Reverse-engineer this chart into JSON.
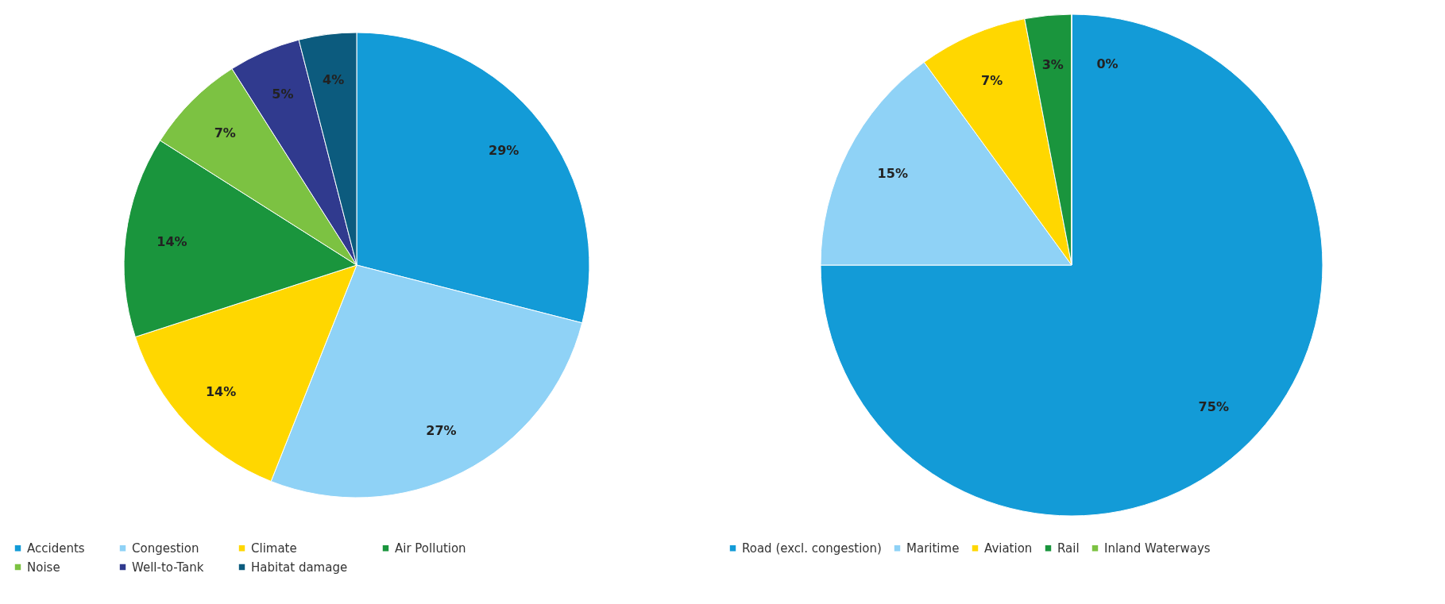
{
  "chart_data": [
    {
      "type": "pie",
      "categories": [
        "Accidents",
        "Congestion",
        "Climate",
        "Air Pollution",
        "Noise",
        "Well-to-Tank",
        "Habitat damage"
      ],
      "values": [
        29,
        27,
        14,
        14,
        7,
        5,
        4
      ],
      "value_labels": [
        "29%",
        "27%",
        "14%",
        "14%",
        "7%",
        "5%",
        "4%"
      ],
      "colors": [
        "#139bd7",
        "#8fd2f6",
        "#ffd700",
        "#1a953d",
        "#7cc242",
        "#303a8e",
        "#0c5b7e"
      ],
      "legend": "bottom"
    },
    {
      "type": "pie",
      "categories": [
        "Road (excl. congestion)",
        "Maritime",
        "Aviation",
        "Rail",
        "Inland Waterways"
      ],
      "values": [
        75,
        15,
        7,
        3,
        0
      ],
      "value_labels": [
        "75%",
        "15%",
        "7%",
        "3%",
        "0%"
      ],
      "colors": [
        "#139bd7",
        "#8fd2f6",
        "#ffd700",
        "#1a953d",
        "#7cc242"
      ],
      "legend": "bottom"
    }
  ]
}
